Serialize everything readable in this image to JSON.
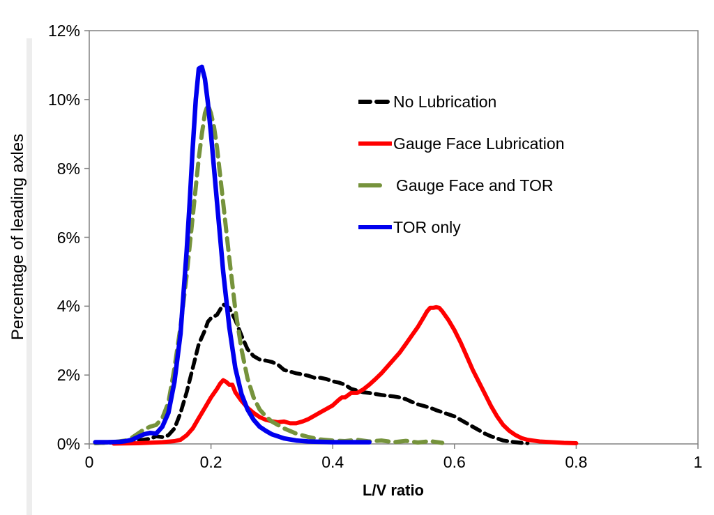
{
  "figure": {
    "axis_color": "#808080",
    "text_color": "#000000",
    "background": "#ffffff"
  },
  "chart_data": {
    "type": "line",
    "title": "",
    "xlabel": "L/V ratio",
    "ylabel": "Percentage of leading axles",
    "xlim": [
      0,
      1
    ],
    "ylim": [
      0,
      12
    ],
    "y_unit": "percent",
    "grid": false,
    "legend_position": "inside upper-right",
    "x_ticks": [
      0,
      0.2,
      0.4,
      0.6,
      0.8,
      1
    ],
    "x_tick_labels": [
      "0",
      "0.2",
      "0.4",
      "0.6",
      "0.8",
      "1"
    ],
    "y_ticks": [
      0,
      2,
      4,
      6,
      8,
      10,
      12
    ],
    "y_tick_labels": [
      "0%",
      "2%",
      "4%",
      "6%",
      "8%",
      "10%",
      "12%"
    ],
    "series": [
      {
        "name": "No Lubrication",
        "color": "#000000",
        "line_style": "dash",
        "line_width": 5.5,
        "points": [
          [
            0.01,
            0.02
          ],
          [
            0.05,
            0.05
          ],
          [
            0.08,
            0.1
          ],
          [
            0.1,
            0.15
          ],
          [
            0.11,
            0.22
          ],
          [
            0.12,
            0.2
          ],
          [
            0.13,
            0.25
          ],
          [
            0.14,
            0.45
          ],
          [
            0.15,
            0.9
          ],
          [
            0.16,
            1.5
          ],
          [
            0.17,
            2.2
          ],
          [
            0.18,
            2.9
          ],
          [
            0.19,
            3.3
          ],
          [
            0.195,
            3.55
          ],
          [
            0.2,
            3.65
          ],
          [
            0.21,
            3.75
          ],
          [
            0.215,
            3.9
          ],
          [
            0.22,
            4.05
          ],
          [
            0.225,
            4.0
          ],
          [
            0.23,
            3.95
          ],
          [
            0.24,
            3.6
          ],
          [
            0.25,
            3.15
          ],
          [
            0.26,
            2.75
          ],
          [
            0.27,
            2.55
          ],
          [
            0.28,
            2.45
          ],
          [
            0.29,
            2.42
          ],
          [
            0.3,
            2.38
          ],
          [
            0.31,
            2.3
          ],
          [
            0.32,
            2.15
          ],
          [
            0.33,
            2.1
          ],
          [
            0.34,
            2.05
          ],
          [
            0.35,
            2.02
          ],
          [
            0.36,
            1.98
          ],
          [
            0.37,
            1.92
          ],
          [
            0.38,
            1.92
          ],
          [
            0.39,
            1.88
          ],
          [
            0.4,
            1.82
          ],
          [
            0.41,
            1.78
          ],
          [
            0.42,
            1.72
          ],
          [
            0.43,
            1.6
          ],
          [
            0.44,
            1.55
          ],
          [
            0.45,
            1.5
          ],
          [
            0.46,
            1.48
          ],
          [
            0.47,
            1.45
          ],
          [
            0.48,
            1.42
          ],
          [
            0.49,
            1.4
          ],
          [
            0.5,
            1.38
          ],
          [
            0.51,
            1.35
          ],
          [
            0.52,
            1.3
          ],
          [
            0.53,
            1.22
          ],
          [
            0.54,
            1.15
          ],
          [
            0.55,
            1.1
          ],
          [
            0.56,
            1.05
          ],
          [
            0.57,
            0.98
          ],
          [
            0.58,
            0.92
          ],
          [
            0.59,
            0.86
          ],
          [
            0.6,
            0.8
          ],
          [
            0.61,
            0.7
          ],
          [
            0.62,
            0.6
          ],
          [
            0.63,
            0.5
          ],
          [
            0.64,
            0.4
          ],
          [
            0.65,
            0.3
          ],
          [
            0.66,
            0.22
          ],
          [
            0.67,
            0.16
          ],
          [
            0.68,
            0.1
          ],
          [
            0.69,
            0.07
          ],
          [
            0.7,
            0.05
          ],
          [
            0.71,
            0.03
          ],
          [
            0.72,
            0.02
          ]
        ]
      },
      {
        "name": "Gauge Face Lubrication",
        "color": "#ff0000",
        "line_style": "solid",
        "line_width": 6,
        "points": [
          [
            0.04,
            0.01
          ],
          [
            0.08,
            0.02
          ],
          [
            0.12,
            0.05
          ],
          [
            0.14,
            0.08
          ],
          [
            0.15,
            0.12
          ],
          [
            0.16,
            0.25
          ],
          [
            0.17,
            0.45
          ],
          [
            0.18,
            0.75
          ],
          [
            0.19,
            1.05
          ],
          [
            0.2,
            1.35
          ],
          [
            0.21,
            1.6
          ],
          [
            0.215,
            1.75
          ],
          [
            0.22,
            1.85
          ],
          [
            0.225,
            1.8
          ],
          [
            0.23,
            1.72
          ],
          [
            0.235,
            1.72
          ],
          [
            0.24,
            1.5
          ],
          [
            0.25,
            1.25
          ],
          [
            0.26,
            1.05
          ],
          [
            0.27,
            0.9
          ],
          [
            0.28,
            0.78
          ],
          [
            0.29,
            0.7
          ],
          [
            0.3,
            0.66
          ],
          [
            0.31,
            0.63
          ],
          [
            0.32,
            0.65
          ],
          [
            0.33,
            0.6
          ],
          [
            0.34,
            0.6
          ],
          [
            0.35,
            0.65
          ],
          [
            0.36,
            0.72
          ],
          [
            0.37,
            0.82
          ],
          [
            0.38,
            0.92
          ],
          [
            0.39,
            1.02
          ],
          [
            0.4,
            1.12
          ],
          [
            0.41,
            1.28
          ],
          [
            0.415,
            1.35
          ],
          [
            0.42,
            1.35
          ],
          [
            0.43,
            1.48
          ],
          [
            0.44,
            1.48
          ],
          [
            0.45,
            1.58
          ],
          [
            0.46,
            1.72
          ],
          [
            0.47,
            1.88
          ],
          [
            0.48,
            2.05
          ],
          [
            0.49,
            2.25
          ],
          [
            0.5,
            2.45
          ],
          [
            0.51,
            2.65
          ],
          [
            0.52,
            2.9
          ],
          [
            0.53,
            3.15
          ],
          [
            0.54,
            3.4
          ],
          [
            0.55,
            3.7
          ],
          [
            0.555,
            3.85
          ],
          [
            0.56,
            3.95
          ],
          [
            0.565,
            3.95
          ],
          [
            0.57,
            3.97
          ],
          [
            0.575,
            3.95
          ],
          [
            0.58,
            3.85
          ],
          [
            0.59,
            3.6
          ],
          [
            0.6,
            3.3
          ],
          [
            0.61,
            2.95
          ],
          [
            0.62,
            2.55
          ],
          [
            0.63,
            2.15
          ],
          [
            0.64,
            1.8
          ],
          [
            0.65,
            1.45
          ],
          [
            0.66,
            1.1
          ],
          [
            0.67,
            0.8
          ],
          [
            0.68,
            0.55
          ],
          [
            0.69,
            0.38
          ],
          [
            0.7,
            0.26
          ],
          [
            0.71,
            0.17
          ],
          [
            0.72,
            0.12
          ],
          [
            0.74,
            0.07
          ],
          [
            0.76,
            0.05
          ],
          [
            0.78,
            0.03
          ],
          [
            0.8,
            0.02
          ]
        ]
      },
      {
        "name": "Gauge Face and TOR",
        "color": "#76933c",
        "line_style": "long-dash",
        "line_width": 6,
        "points": [
          [
            0.01,
            0.02
          ],
          [
            0.04,
            0.05
          ],
          [
            0.06,
            0.1
          ],
          [
            0.07,
            0.18
          ],
          [
            0.08,
            0.3
          ],
          [
            0.09,
            0.42
          ],
          [
            0.1,
            0.5
          ],
          [
            0.11,
            0.55
          ],
          [
            0.12,
            0.75
          ],
          [
            0.13,
            1.2
          ],
          [
            0.14,
            2.2
          ],
          [
            0.15,
            3.4
          ],
          [
            0.16,
            4.9
          ],
          [
            0.17,
            6.6
          ],
          [
            0.18,
            8.3
          ],
          [
            0.185,
            9.0
          ],
          [
            0.19,
            9.6
          ],
          [
            0.195,
            9.85
          ],
          [
            0.2,
            9.6
          ],
          [
            0.205,
            9.2
          ],
          [
            0.21,
            8.6
          ],
          [
            0.22,
            7.0
          ],
          [
            0.23,
            5.4
          ],
          [
            0.24,
            3.9
          ],
          [
            0.25,
            2.75
          ],
          [
            0.26,
            1.9
          ],
          [
            0.27,
            1.35
          ],
          [
            0.28,
            1.0
          ],
          [
            0.29,
            0.8
          ],
          [
            0.3,
            0.65
          ],
          [
            0.32,
            0.45
          ],
          [
            0.34,
            0.3
          ],
          [
            0.36,
            0.2
          ],
          [
            0.38,
            0.13
          ],
          [
            0.4,
            0.1
          ],
          [
            0.42,
            0.08
          ],
          [
            0.44,
            0.12
          ],
          [
            0.46,
            0.07
          ],
          [
            0.48,
            0.1
          ],
          [
            0.5,
            0.05
          ],
          [
            0.52,
            0.09
          ],
          [
            0.54,
            0.04
          ],
          [
            0.56,
            0.08
          ],
          [
            0.58,
            0.03
          ]
        ]
      },
      {
        "name": "TOR only",
        "color": "#0000ee",
        "line_style": "solid",
        "line_width": 6.5,
        "points": [
          [
            0.01,
            0.05
          ],
          [
            0.03,
            0.05
          ],
          [
            0.05,
            0.06
          ],
          [
            0.06,
            0.08
          ],
          [
            0.07,
            0.12
          ],
          [
            0.08,
            0.2
          ],
          [
            0.09,
            0.28
          ],
          [
            0.1,
            0.32
          ],
          [
            0.11,
            0.3
          ],
          [
            0.12,
            0.5
          ],
          [
            0.13,
            0.9
          ],
          [
            0.14,
            1.8
          ],
          [
            0.15,
            3.2
          ],
          [
            0.16,
            5.6
          ],
          [
            0.165,
            7.0
          ],
          [
            0.17,
            8.6
          ],
          [
            0.175,
            10.0
          ],
          [
            0.18,
            10.9
          ],
          [
            0.185,
            10.95
          ],
          [
            0.19,
            10.6
          ],
          [
            0.195,
            9.9
          ],
          [
            0.2,
            9.0
          ],
          [
            0.21,
            7.0
          ],
          [
            0.22,
            5.0
          ],
          [
            0.23,
            3.4
          ],
          [
            0.24,
            2.2
          ],
          [
            0.25,
            1.45
          ],
          [
            0.26,
            1.0
          ],
          [
            0.27,
            0.7
          ],
          [
            0.28,
            0.5
          ],
          [
            0.29,
            0.38
          ],
          [
            0.3,
            0.28
          ],
          [
            0.32,
            0.16
          ],
          [
            0.34,
            0.1
          ],
          [
            0.36,
            0.07
          ],
          [
            0.38,
            0.06
          ],
          [
            0.4,
            0.05
          ],
          [
            0.43,
            0.05
          ],
          [
            0.46,
            0.05
          ]
        ]
      }
    ]
  }
}
